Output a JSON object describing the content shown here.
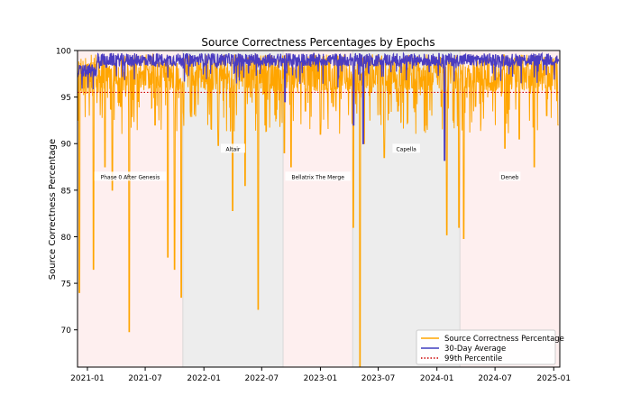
{
  "chart_data": {
    "type": "line",
    "title": "Source Correctness Percentages by Epochs",
    "xlabel": "",
    "ylabel": "Source Correctness Percentage",
    "xlim": [
      "2020-12-01",
      "2025-01-20"
    ],
    "ylim": [
      66.0,
      100.0
    ],
    "x_ticks": [
      "2021-01",
      "2021-07",
      "2022-01",
      "2022-07",
      "2023-01",
      "2023-07",
      "2024-01",
      "2024-07",
      "2025-01"
    ],
    "y_ticks": [
      70,
      75,
      80,
      85,
      90,
      95,
      100
    ],
    "grid": false,
    "legend": {
      "position": "bottom-right",
      "entries": [
        {
          "label": "Source Correctness Percentage",
          "color": "#ffa500",
          "style": "solid"
        },
        {
          "label": "30-Day Average",
          "color": "#3f3fbf",
          "style": "solid"
        },
        {
          "label": "99th Percentile",
          "color": "#cc0000",
          "style": "dotted"
        }
      ]
    },
    "colors": {
      "series_main": "#ffa500",
      "series_avg": "#4b3cc0",
      "percentile": "#cc0000",
      "region_pink": "#fde8e8",
      "region_gray": "#e6e6e6"
    },
    "reference_lines": [
      {
        "name": "99th Percentile",
        "y": 95.5
      }
    ],
    "regions": [
      {
        "label": "Phase 0 After Genesis",
        "start": "2020-12-01",
        "end": "2021-10-27",
        "color": "pink",
        "label_y": 86.5
      },
      {
        "label": "Altair",
        "start": "2021-10-27",
        "end": "2022-09-06",
        "color": "gray",
        "label_y": 89.5
      },
      {
        "label": "Bellatrix The Merge",
        "start": "2022-09-06",
        "end": "2023-04-12",
        "color": "pink",
        "label_y": 86.5
      },
      {
        "label": "Capella",
        "start": "2023-04-12",
        "end": "2024-03-13",
        "color": "gray",
        "label_y": 89.5
      },
      {
        "label": "Deneb",
        "start": "2024-03-13",
        "end": "2025-01-20",
        "color": "pink",
        "label_y": 86.5
      }
    ],
    "series": [
      {
        "name": "Source Correctness Percentage",
        "x": [
          "2020-12-02",
          "2020-12-07",
          "2021-01-01",
          "2021-01-20",
          "2021-02-25",
          "2021-03-20",
          "2021-04-15",
          "2021-05-12",
          "2021-06-06",
          "2021-07-15",
          "2021-08-01",
          "2021-08-20",
          "2021-09-10",
          "2021-10-01",
          "2021-10-22",
          "2021-11-20",
          "2022-01-01",
          "2022-02-15",
          "2022-04-01",
          "2022-05-10",
          "2022-06-20",
          "2022-08-01",
          "2022-09-10",
          "2022-10-01",
          "2022-11-15",
          "2023-01-01",
          "2023-02-10",
          "2023-03-20",
          "2023-04-14",
          "2023-05-05",
          "2023-05-18",
          "2023-06-10",
          "2023-07-20",
          "2023-09-01",
          "2023-10-15",
          "2023-12-01",
          "2024-01-15",
          "2024-02-01",
          "2024-03-10",
          "2024-03-25",
          "2024-05-01",
          "2024-06-15",
          "2024-08-01",
          "2024-09-15",
          "2024-11-01",
          "2024-12-10",
          "2025-01-15"
        ],
        "y": [
          92.5,
          74.0,
          98.5,
          76.5,
          87.5,
          85.0,
          94.0,
          69.8,
          97.5,
          96.0,
          92.0,
          98.0,
          77.8,
          76.5,
          73.5,
          93.5,
          96.0,
          89.8,
          82.8,
          85.5,
          72.2,
          96.0,
          89.0,
          87.5,
          93.5,
          91.0,
          94.0,
          96.5,
          81.0,
          66.0,
          90.0,
          95.5,
          88.5,
          93.5,
          96.0,
          92.0,
          94.0,
          80.2,
          81.0,
          79.8,
          94.0,
          96.5,
          89.5,
          90.5,
          87.5,
          93.0,
          92.0
        ]
      },
      {
        "name": "30-Day Average",
        "x": [
          "2020-12-02",
          "2021-01-01",
          "2021-03-01",
          "2021-06-01",
          "2021-09-01",
          "2021-11-01",
          "2022-01-01",
          "2022-04-01",
          "2022-07-01",
          "2022-09-01",
          "2022-09-12",
          "2022-11-01",
          "2023-01-01",
          "2023-04-01",
          "2023-04-15",
          "2023-05-15",
          "2023-06-15",
          "2023-09-01",
          "2023-12-01",
          "2024-01-25",
          "2024-03-01",
          "2024-06-01",
          "2024-09-01",
          "2024-12-01",
          "2025-01-18"
        ],
        "y": [
          97.5,
          98.8,
          98.2,
          98.8,
          99.0,
          98.5,
          99.0,
          99.3,
          99.5,
          99.4,
          94.5,
          98.8,
          98.9,
          99.0,
          92.0,
          90.0,
          98.5,
          99.0,
          99.1,
          88.2,
          99.0,
          99.4,
          99.3,
          99.4,
          99.2
        ]
      }
    ]
  }
}
